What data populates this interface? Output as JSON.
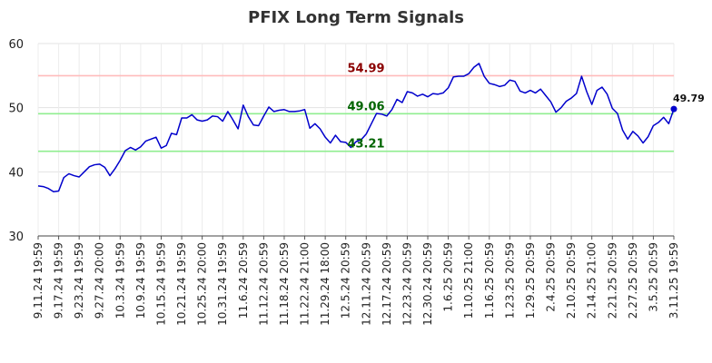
{
  "chart_data": {
    "type": "line",
    "title": "PFIX Long Term Signals",
    "xlabel": "",
    "ylabel": "",
    "ylim": [
      30,
      60
    ],
    "yticks": [
      30,
      40,
      50,
      60
    ],
    "grid": true,
    "x_tick_labels": [
      "9.11.24 19:59",
      "9.17.24 19:59",
      "9.23.24 19:59",
      "9.27.24 20:00",
      "10.3.24 19:59",
      "10.9.24 19:59",
      "10.15.24 19:59",
      "10.21.24 19:59",
      "10.25.24 20:00",
      "10.31.24 19:59",
      "11.6.24 20:59",
      "11.12.24 20:59",
      "11.18.24 20:59",
      "11.22.24 21:00",
      "11.29.24 18:00",
      "12.5.24 20:59",
      "12.11.24 20:59",
      "12.17.24 20:59",
      "12.23.24 20:59",
      "12.30.24 20:59",
      "1.6.25 20:59",
      "1.10.25 21:00",
      "1.16.25 20:59",
      "1.23.25 20:59",
      "1.29.25 20:59",
      "2.4.25 20:59",
      "2.10.25 20:59",
      "2.14.25 21:00",
      "2.21.25 20:59",
      "2.27.25 20:59",
      "3.5.25 20:59",
      "3.11.25 19:59"
    ],
    "series": [
      {
        "color": "#0000cc",
        "values": [
          37.8,
          37.7,
          37.4,
          36.9,
          37.0,
          39.1,
          39.7,
          39.4,
          39.2,
          40.0,
          40.8,
          41.1,
          41.2,
          40.7,
          39.4,
          40.5,
          41.8,
          43.3,
          43.8,
          43.4,
          43.9,
          44.8,
          45.1,
          45.4,
          43.7,
          44.1,
          46.0,
          45.8,
          48.4,
          48.4,
          48.9,
          48.1,
          47.9,
          48.1,
          48.7,
          48.6,
          47.9,
          49.4,
          48.1,
          46.7,
          50.4,
          48.6,
          47.3,
          47.2,
          48.7,
          50.1,
          49.4,
          49.6,
          49.7,
          49.4,
          49.4,
          49.5,
          49.7,
          46.8,
          47.5,
          46.7,
          45.4,
          44.5,
          45.7,
          44.7,
          44.6,
          43.8,
          44.7,
          45.0,
          45.9,
          47.5,
          49.1,
          49.0,
          48.7,
          49.7,
          51.3,
          50.8,
          52.5,
          52.3,
          51.8,
          52.1,
          51.7,
          52.2,
          52.1,
          52.3,
          53.1,
          54.8,
          54.9,
          54.9,
          55.3,
          56.3,
          56.9,
          54.9,
          53.8,
          53.6,
          53.3,
          53.5,
          54.3,
          54.1,
          52.6,
          52.3,
          52.7,
          52.3,
          52.9,
          51.9,
          50.9,
          49.3,
          50.0,
          51.0,
          51.5,
          52.2,
          54.9,
          52.5,
          50.5,
          52.7,
          53.2,
          52.1,
          49.9,
          49.1,
          46.5,
          45.1,
          46.3,
          45.6,
          44.5,
          45.5,
          47.2,
          47.7,
          48.5,
          47.5,
          49.79
        ]
      }
    ],
    "levels": [
      {
        "value": 54.99,
        "label": "54.99",
        "line_color": "#ffbbbb",
        "label_color": "#8b0000"
      },
      {
        "value": 49.06,
        "label": "49.06",
        "line_color": "#90ee90",
        "label_color": "#006400"
      },
      {
        "value": 43.21,
        "label": "43.21",
        "line_color": "#90ee90",
        "label_color": "#006400"
      }
    ],
    "last_point": {
      "value": 49.79,
      "label": "49.79"
    }
  }
}
